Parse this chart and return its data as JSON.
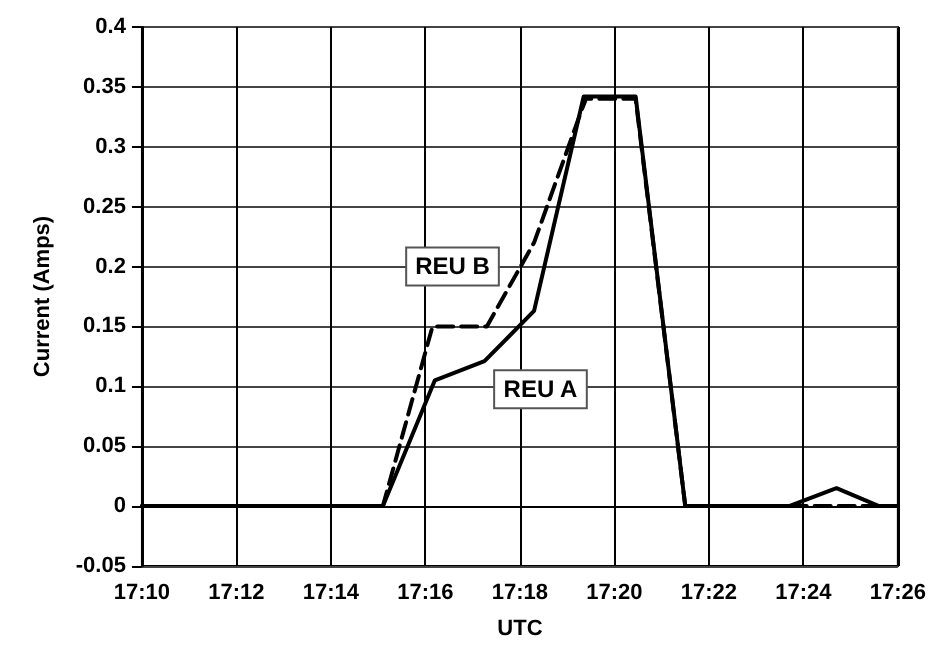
{
  "chart_data": {
    "type": "line",
    "xlabel": "UTC",
    "ylabel": "Current (Amps)",
    "xlim": [
      17.16667,
      17.43333
    ],
    "xticks": [
      {
        "value": 17.16667,
        "label": "17:10"
      },
      {
        "value": 17.2,
        "label": "17:12"
      },
      {
        "value": 17.23333,
        "label": "17:14"
      },
      {
        "value": 17.26667,
        "label": "17:16"
      },
      {
        "value": 17.3,
        "label": "17:18"
      },
      {
        "value": 17.33333,
        "label": "17:20"
      },
      {
        "value": 17.36667,
        "label": "17:22"
      },
      {
        "value": 17.4,
        "label": "17:24"
      },
      {
        "value": 17.43333,
        "label": "17:26"
      }
    ],
    "ylim": [
      -0.05,
      0.4
    ],
    "yticks": [
      -0.05,
      0,
      0.05,
      0.1,
      0.15,
      0.2,
      0.25,
      0.3,
      0.35,
      0.4
    ],
    "grid": true,
    "marker": "none",
    "series": [
      {
        "name": "REU B",
        "color": "#000000",
        "line_style": "dashed",
        "x": [
          17.16667,
          17.25167,
          17.26917,
          17.28833,
          17.305,
          17.32167,
          17.32333,
          17.34083,
          17.35833,
          17.43333
        ],
        "values": [
          0,
          0,
          0.15,
          0.15,
          0.22,
          0.33,
          0.34,
          0.34,
          0,
          0
        ]
      },
      {
        "name": "REU A",
        "color": "#000000",
        "line_style": "solid",
        "x": [
          17.16667,
          17.25167,
          17.27,
          17.2875,
          17.305,
          17.3225,
          17.34083,
          17.35833,
          17.395,
          17.41167,
          17.42667,
          17.43333
        ],
        "values": [
          0,
          0,
          0.105,
          0.121,
          0.163,
          0.342,
          0.342,
          0,
          0,
          0.015,
          0,
          0
        ]
      }
    ]
  }
}
